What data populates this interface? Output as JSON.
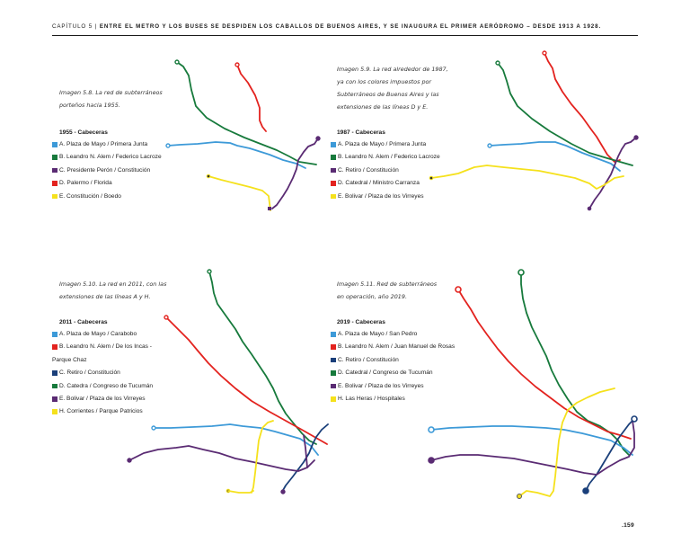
{
  "header": {
    "chapter": "CAPÍTULO 5 |",
    "title": " ENTRE EL METRO Y LOS BUSES SE DESPIDEN LOS CABALLOS DE BUENOS AIRES, Y SE INAUGURA EL PRIMER AERÓDROMO – DESDE 1913 A 1928."
  },
  "colors": {
    "A": "#3d9ad8",
    "B": "#e3231f",
    "C": "#1a3f7a",
    "C1955": "#5a2b73",
    "D": "#177a3c",
    "E": "#5a2b73",
    "H": "#f5e11c"
  },
  "panels": [
    {
      "caption": [
        "Imagen 5.8. La red de subterráneos",
        "porteños hacia 1955."
      ],
      "legend_title": "1955 - Cabeceras",
      "items": [
        {
          "swatch": "#3d9ad8",
          "label": "A. Plaza de Mayo / Primera Junta"
        },
        {
          "swatch": "#177a3c",
          "label": "B. Leandro N. Alem / Federico Lacroze"
        },
        {
          "swatch": "#5a2b73",
          "label": "C. Presidente Perón / Constitución"
        },
        {
          "swatch": "#e3231f",
          "label": "D. Palermo / Florida"
        },
        {
          "swatch": "#f5e11c",
          "label": "E. Constitución / Boedo"
        }
      ]
    },
    {
      "caption": [
        "Imagen 5.9. La red alrededor de 1987,",
        "ya con los colores impuestos por",
        "Subterráneos de Buenos Aires y las",
        "extensiones de las líneas D y E."
      ],
      "legend_title": "1987 - Cabeceras",
      "items": [
        {
          "swatch": "#3d9ad8",
          "label": "A. Plaza de Mayo / Primera Junta"
        },
        {
          "swatch": "#177a3c",
          "label": "B. Leandro N. Alem / Federico Lacroze"
        },
        {
          "swatch": "#5a2b73",
          "label": "C. Retiro / Constitución"
        },
        {
          "swatch": "#e3231f",
          "label": "D. Catedral / Ministro Carranza"
        },
        {
          "swatch": "#f5e11c",
          "label": "E. Bolivar / Plaza de los Virreyes"
        }
      ]
    },
    {
      "caption": [
        "Imagen 5.10. La red en 2011, con las",
        "extensiones de las líneas A y H."
      ],
      "legend_title": "2011 - Cabeceras",
      "items": [
        {
          "swatch": "#3d9ad8",
          "label": "A. Plaza de Mayo / Carabobo"
        },
        {
          "swatch": "#e3231f",
          "label": "B. Leandro N. Alem / De los Incas -"
        },
        {
          "swatch": "",
          "label": "Parque Chaz"
        },
        {
          "swatch": "#1a3f7a",
          "label": "C. Retiro / Constitución"
        },
        {
          "swatch": "#177a3c",
          "label": "D. Catedra / Congreso de Tucumán"
        },
        {
          "swatch": "#5a2b73",
          "label": "E. Bolivar / Plaza de los Virreyes"
        },
        {
          "swatch": "#f5e11c",
          "label": "H. Corrientes / Parque Patricios"
        }
      ]
    },
    {
      "caption": [
        "Imagen 5.11. Red de subterráneos",
        "en operación, año 2019."
      ],
      "legend_title": "2019 - Cabeceras",
      "items": [
        {
          "swatch": "#3d9ad8",
          "label": "A. Plaza de Mayo / San Pedro"
        },
        {
          "swatch": "#e3231f",
          "label": "B. Leandro N. Alem / Juan Manuel de Rosas"
        },
        {
          "swatch": "#1a3f7a",
          "label": "C. Retiro / Constitución"
        },
        {
          "swatch": "#177a3c",
          "label": "D. Catedral / Congreso de Tucumán"
        },
        {
          "swatch": "#5a2b73",
          "label": "E. Bolivar / Plaza de los Virreyes"
        },
        {
          "swatch": "#f5e11c",
          "label": "H. Las Heras / Hospitales"
        }
      ]
    }
  ],
  "page_number": ".159"
}
